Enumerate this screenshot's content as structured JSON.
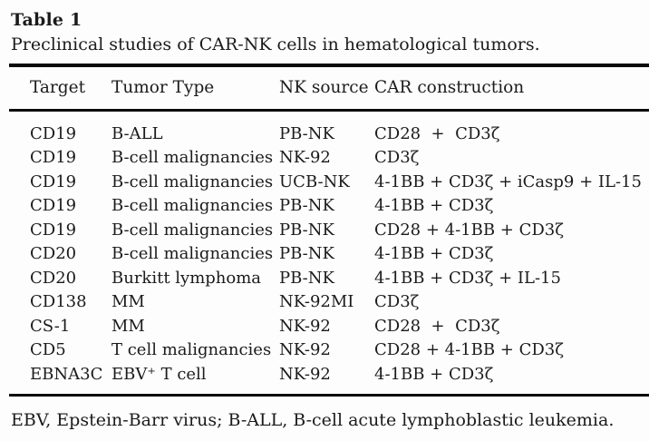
{
  "caption": {
    "label": "Table 1",
    "text": "Preclinical studies of CAR-NK cells in hematological tumors."
  },
  "table": {
    "columns": [
      "Target",
      "Tumor Type",
      "NK source",
      "CAR construction"
    ],
    "rows": [
      [
        "CD19",
        "B-ALL",
        "PB-NK",
        "CD28  +  CD3ζ"
      ],
      [
        "CD19",
        "B-cell malignancies",
        "NK-92",
        "CD3ζ"
      ],
      [
        "CD19",
        "B-cell malignancies",
        "UCB-NK",
        "4-1BB + CD3ζ + iCasp9 + IL-15"
      ],
      [
        "CD19",
        "B-cell malignancies",
        "PB-NK",
        "4-1BB + CD3ζ"
      ],
      [
        "CD19",
        "B-cell malignancies",
        "PB-NK",
        "CD28 + 4-1BB + CD3ζ"
      ],
      [
        "CD20",
        "B-cell malignancies",
        "PB-NK",
        "4-1BB + CD3ζ"
      ],
      [
        "CD20",
        "Burkitt lymphoma",
        "PB-NK",
        "4-1BB + CD3ζ + IL-15"
      ],
      [
        "CD138",
        "MM",
        "NK-92MI",
        "CD3ζ"
      ],
      [
        "CS-1",
        "MM",
        "NK-92",
        "CD28  +  CD3ζ"
      ],
      [
        "CD5",
        "T cell malignancies",
        "NK-92",
        "CD28 + 4-1BB + CD3ζ"
      ],
      [
        "EBNA3C",
        "EBV⁺ T cell",
        "NK-92",
        "4-1BB + CD3ζ"
      ]
    ],
    "column_keys": [
      "target",
      "tumor-type",
      "nk-source",
      "car-construction"
    ]
  },
  "footnote": "EBV, Epstein-Barr virus; B-ALL, B-cell acute lymphoblastic leukemia.",
  "colors": {
    "text": "#1b1b1b",
    "rule": "#0c0c0c",
    "background": "#fdfdfd"
  }
}
